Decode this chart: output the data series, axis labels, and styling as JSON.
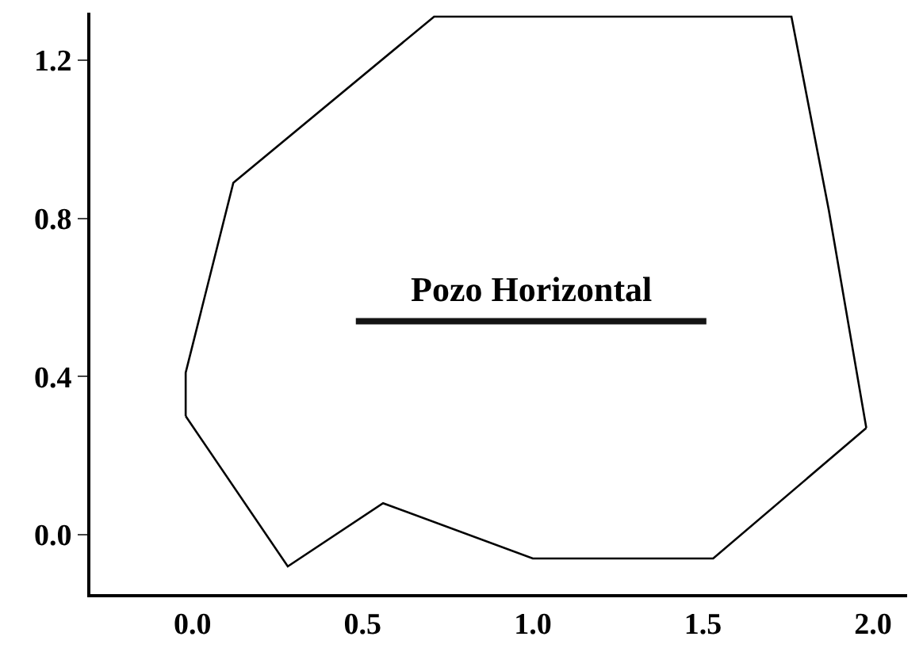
{
  "chart_data": {
    "type": "line",
    "xlim": [
      -0.3,
      2.1
    ],
    "ylim": [
      -0.15,
      1.32
    ],
    "xticks": [
      {
        "value": 0,
        "label": "0.0"
      },
      0.5,
      {
        "value": 1,
        "label": "1.0"
      },
      1.5,
      {
        "value": 2,
        "label": "2.0"
      }
    ],
    "yticks": [
      {
        "value": 0,
        "label": "0.0"
      },
      0.4,
      0.8,
      1.2
    ],
    "grid": false,
    "legend": false,
    "marker": "none",
    "series": [
      {
        "color": "#000000",
        "line_style": "solid",
        "x": [
          -0.02,
          0.28,
          0.56,
          1.0,
          1.53,
          1.98
        ],
        "values": [
          0.3,
          -0.08,
          0.08,
          -0.06,
          -0.06,
          0.27
        ]
      },
      {
        "color": "#000000",
        "line_style": "solid",
        "x": [
          -0.02,
          -0.02,
          0.12,
          0.71,
          1.76,
          1.87,
          1.98
        ],
        "values": [
          0.3,
          0.41,
          0.89,
          1.31,
          1.31,
          0.82,
          0.27
        ]
      },
      {
        "name": "Pozo Horizontal",
        "color": "#141414",
        "line_style": "solid",
        "x": [
          0.48,
          1.51
        ],
        "values": [
          0.54,
          0.54
        ]
      }
    ]
  }
}
